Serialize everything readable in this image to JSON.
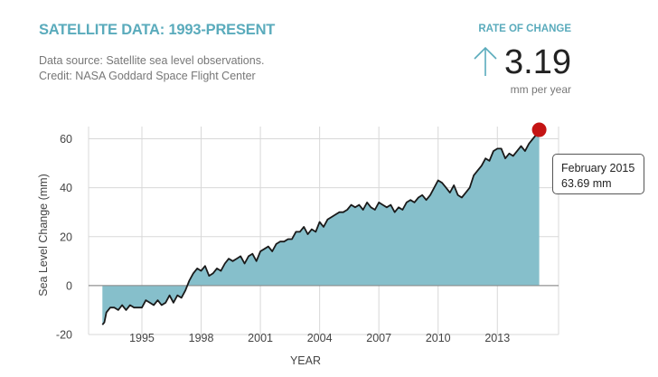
{
  "header": {
    "title": "SATELLITE DATA: 1993-PRESENT",
    "source_line1": "Data source: Satellite sea level observations.",
    "source_line2": "Credit: NASA Goddard Space Flight Center"
  },
  "rate": {
    "label": "RATE OF CHANGE",
    "value": "3.19",
    "unit": "mm per year",
    "arrow_icon": "arrow-up-icon",
    "arrow_color": "#5aabbc"
  },
  "tooltip": {
    "date": "February 2015",
    "value": "63.69 mm"
  },
  "colors": {
    "fill": "#86bfcb",
    "line": "#1a1a1a",
    "marker": "#c41414",
    "grid": "#d8d8d8"
  },
  "chart_data": {
    "type": "area",
    "xlabel": "YEAR",
    "ylabel": "Sea Level Change (mm)",
    "xlim": [
      1992.3,
      2016.1
    ],
    "ylim": [
      -20,
      65
    ],
    "x_ticks": [
      1995,
      1998,
      2001,
      2004,
      2007,
      2010,
      2013
    ],
    "y_ticks": [
      -20,
      0,
      20,
      40,
      60
    ],
    "grid": true,
    "highlight": {
      "x": 2015.12,
      "y": 63.69
    },
    "series": [
      {
        "x": [
          1993.0,
          1993.1,
          1993.2,
          1993.3,
          1993.4,
          1993.6,
          1993.8,
          1994.0,
          1994.2,
          1994.4,
          1994.6,
          1994.8,
          1995.0,
          1995.2,
          1995.4,
          1995.6,
          1995.8,
          1996.0,
          1996.2,
          1996.4,
          1996.6,
          1996.8,
          1997.0,
          1997.2,
          1997.4,
          1997.6,
          1997.8,
          1998.0,
          1998.2,
          1998.4,
          1998.6,
          1998.8,
          1999.0,
          1999.2,
          1999.4,
          1999.6,
          1999.8,
          2000.0,
          2000.2,
          2000.4,
          2000.6,
          2000.8,
          2001.0,
          2001.2,
          2001.4,
          2001.6,
          2001.8,
          2002.0,
          2002.2,
          2002.4,
          2002.6,
          2002.8,
          2003.0,
          2003.2,
          2003.4,
          2003.6,
          2003.8,
          2004.0,
          2004.2,
          2004.4,
          2004.6,
          2004.8,
          2005.0,
          2005.2,
          2005.4,
          2005.6,
          2005.8,
          2006.0,
          2006.2,
          2006.4,
          2006.6,
          2006.8,
          2007.0,
          2007.2,
          2007.4,
          2007.6,
          2007.8,
          2008.0,
          2008.2,
          2008.4,
          2008.6,
          2008.8,
          2009.0,
          2009.2,
          2009.4,
          2009.6,
          2009.8,
          2010.0,
          2010.2,
          2010.4,
          2010.6,
          2010.8,
          2011.0,
          2011.2,
          2011.4,
          2011.6,
          2011.8,
          2012.0,
          2012.2,
          2012.4,
          2012.6,
          2012.8,
          2013.0,
          2013.2,
          2013.4,
          2013.6,
          2013.8,
          2014.0,
          2014.2,
          2014.4,
          2014.6,
          2014.8,
          2015.0,
          2015.12
        ],
        "values": [
          -16,
          -15,
          -11,
          -10,
          -9,
          -9,
          -10,
          -8,
          -10,
          -8,
          -9,
          -9,
          -9,
          -6,
          -7,
          -8,
          -6,
          -8,
          -7,
          -4,
          -7,
          -4,
          -5,
          -2,
          2,
          5,
          7,
          6,
          8,
          4,
          5,
          7,
          6,
          9,
          11,
          10,
          11,
          12,
          9,
          12,
          13,
          10,
          14,
          15,
          16,
          14,
          17,
          18,
          18,
          19,
          19,
          22,
          22,
          24,
          21,
          23,
          22,
          26,
          24,
          27,
          28,
          29,
          30,
          30,
          31,
          33,
          32,
          33,
          31,
          34,
          32,
          31,
          34,
          33,
          32,
          33,
          30,
          32,
          31,
          34,
          35,
          34,
          36,
          37,
          35,
          37,
          40,
          43,
          42,
          40,
          38,
          41,
          37,
          36,
          38,
          40,
          45,
          47,
          49,
          52,
          51,
          55,
          56,
          56,
          52,
          54,
          53,
          55,
          57,
          55,
          58,
          60,
          62,
          63.69
        ]
      }
    ]
  }
}
